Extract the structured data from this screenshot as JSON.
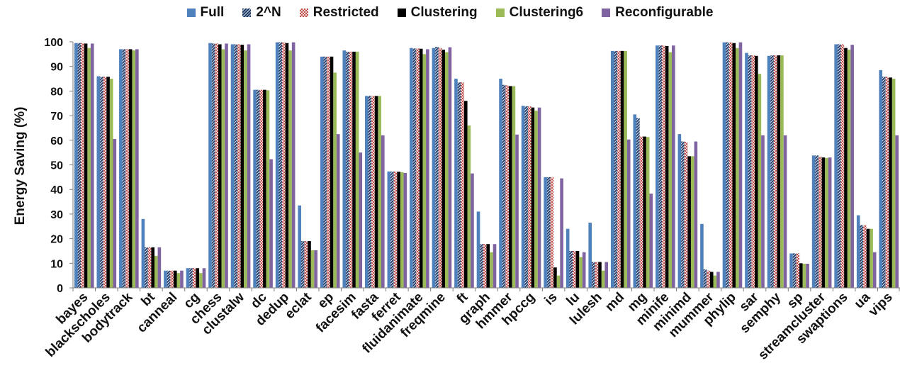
{
  "chart_data": {
    "type": "bar",
    "title": "",
    "xlabel": "",
    "ylabel": "Energy Saving (%)",
    "ylim": [
      0,
      100
    ],
    "yticks": [
      0,
      10,
      20,
      30,
      40,
      50,
      60,
      70,
      80,
      90,
      100
    ],
    "grid": false,
    "legend_position": "top",
    "categories": [
      "bayes",
      "blackscholes",
      "bodytrack",
      "bt",
      "canneal",
      "cg",
      "chess",
      "clustalw",
      "dc",
      "dedup",
      "eclat",
      "ep",
      "facesim",
      "fasta",
      "ferret",
      "fluidanimate",
      "freqmine",
      "ft",
      "graph",
      "hmmer",
      "hpccg",
      "is",
      "lu",
      "lulesh",
      "md",
      "mg",
      "minife",
      "minimd",
      "mummer",
      "phylip",
      "sar",
      "semphy",
      "sp",
      "streamcluster",
      "swaptions",
      "ua",
      "vips"
    ],
    "series": [
      {
        "name": "Full",
        "color": "#4F81BD",
        "pattern": "solid",
        "values": [
          99.5,
          86,
          97,
          28,
          7,
          8,
          99.5,
          99,
          80.5,
          99.8,
          33.5,
          94,
          96.5,
          78,
          47.3,
          97.5,
          97.5,
          85,
          31,
          85,
          74,
          45,
          24,
          26.5,
          96.3,
          70.5,
          98.5,
          62.5,
          26,
          99.8,
          95.5,
          94.3,
          14,
          53.8,
          99,
          29.5,
          88.5
        ]
      },
      {
        "name": "2^N",
        "color": "#1F3864",
        "pattern": "diagonal",
        "values": [
          99.5,
          85.8,
          97,
          16.5,
          7,
          8,
          99.3,
          99,
          80.5,
          99.8,
          19,
          94,
          96,
          78,
          47.3,
          97.3,
          98,
          83.5,
          17.8,
          82.5,
          73.8,
          45,
          15,
          10.5,
          96.3,
          69,
          98.5,
          59.5,
          7.5,
          99.8,
          94.5,
          94.5,
          14,
          53.8,
          99,
          25.5,
          85.8
        ]
      },
      {
        "name": "Restricted",
        "color": "#C0504D",
        "pattern": "checker",
        "values": [
          99.5,
          85.8,
          97,
          16.5,
          7,
          8,
          99.3,
          99,
          80.5,
          99.8,
          19,
          94,
          96,
          78,
          47.3,
          97.3,
          97.5,
          83.5,
          17.8,
          82.3,
          73.8,
          45,
          15,
          10.5,
          96.3,
          61.5,
          98.5,
          59.3,
          7,
          99.8,
          94.5,
          94.5,
          14,
          53.3,
          99,
          25.5,
          85.8
        ]
      },
      {
        "name": "Clustering",
        "color": "#000000",
        "pattern": "solid",
        "values": [
          99.3,
          85.8,
          97,
          16.5,
          7,
          8,
          99,
          98.8,
          80.5,
          99.5,
          19,
          94,
          96,
          78,
          47.2,
          97.2,
          96.8,
          76,
          17.8,
          82,
          73.3,
          8.3,
          15,
          10.5,
          96.3,
          61.5,
          98.3,
          53.5,
          6.5,
          99.5,
          94.3,
          94.5,
          10,
          53,
          97.5,
          24,
          85.5
        ]
      },
      {
        "name": "Clustering6",
        "color": "#9BBB59",
        "pattern": "solid",
        "values": [
          97.5,
          85,
          96.5,
          13,
          6,
          6,
          97,
          96.5,
          80.3,
          96.5,
          15.3,
          87.5,
          96,
          78,
          47,
          95,
          95.8,
          66,
          14.5,
          82,
          72,
          5,
          12.5,
          7,
          96.3,
          61.3,
          95.8,
          53.5,
          5,
          97.5,
          87,
          94.5,
          9.8,
          52.8,
          96.8,
          24,
          85
        ]
      },
      {
        "name": "Reconfigurable",
        "color": "#8064A2",
        "pattern": "solid",
        "values": [
          99.3,
          60.5,
          97,
          16.5,
          7,
          8,
          99.3,
          99,
          52.3,
          99.8,
          15.3,
          62.5,
          55,
          62,
          46.7,
          97,
          97.8,
          46.5,
          17.8,
          62.3,
          73.3,
          44.5,
          14.5,
          10.5,
          60.3,
          38.3,
          98.5,
          59.5,
          6.5,
          99.8,
          62,
          62,
          9.8,
          53,
          98.8,
          14.5,
          62
        ]
      }
    ]
  }
}
